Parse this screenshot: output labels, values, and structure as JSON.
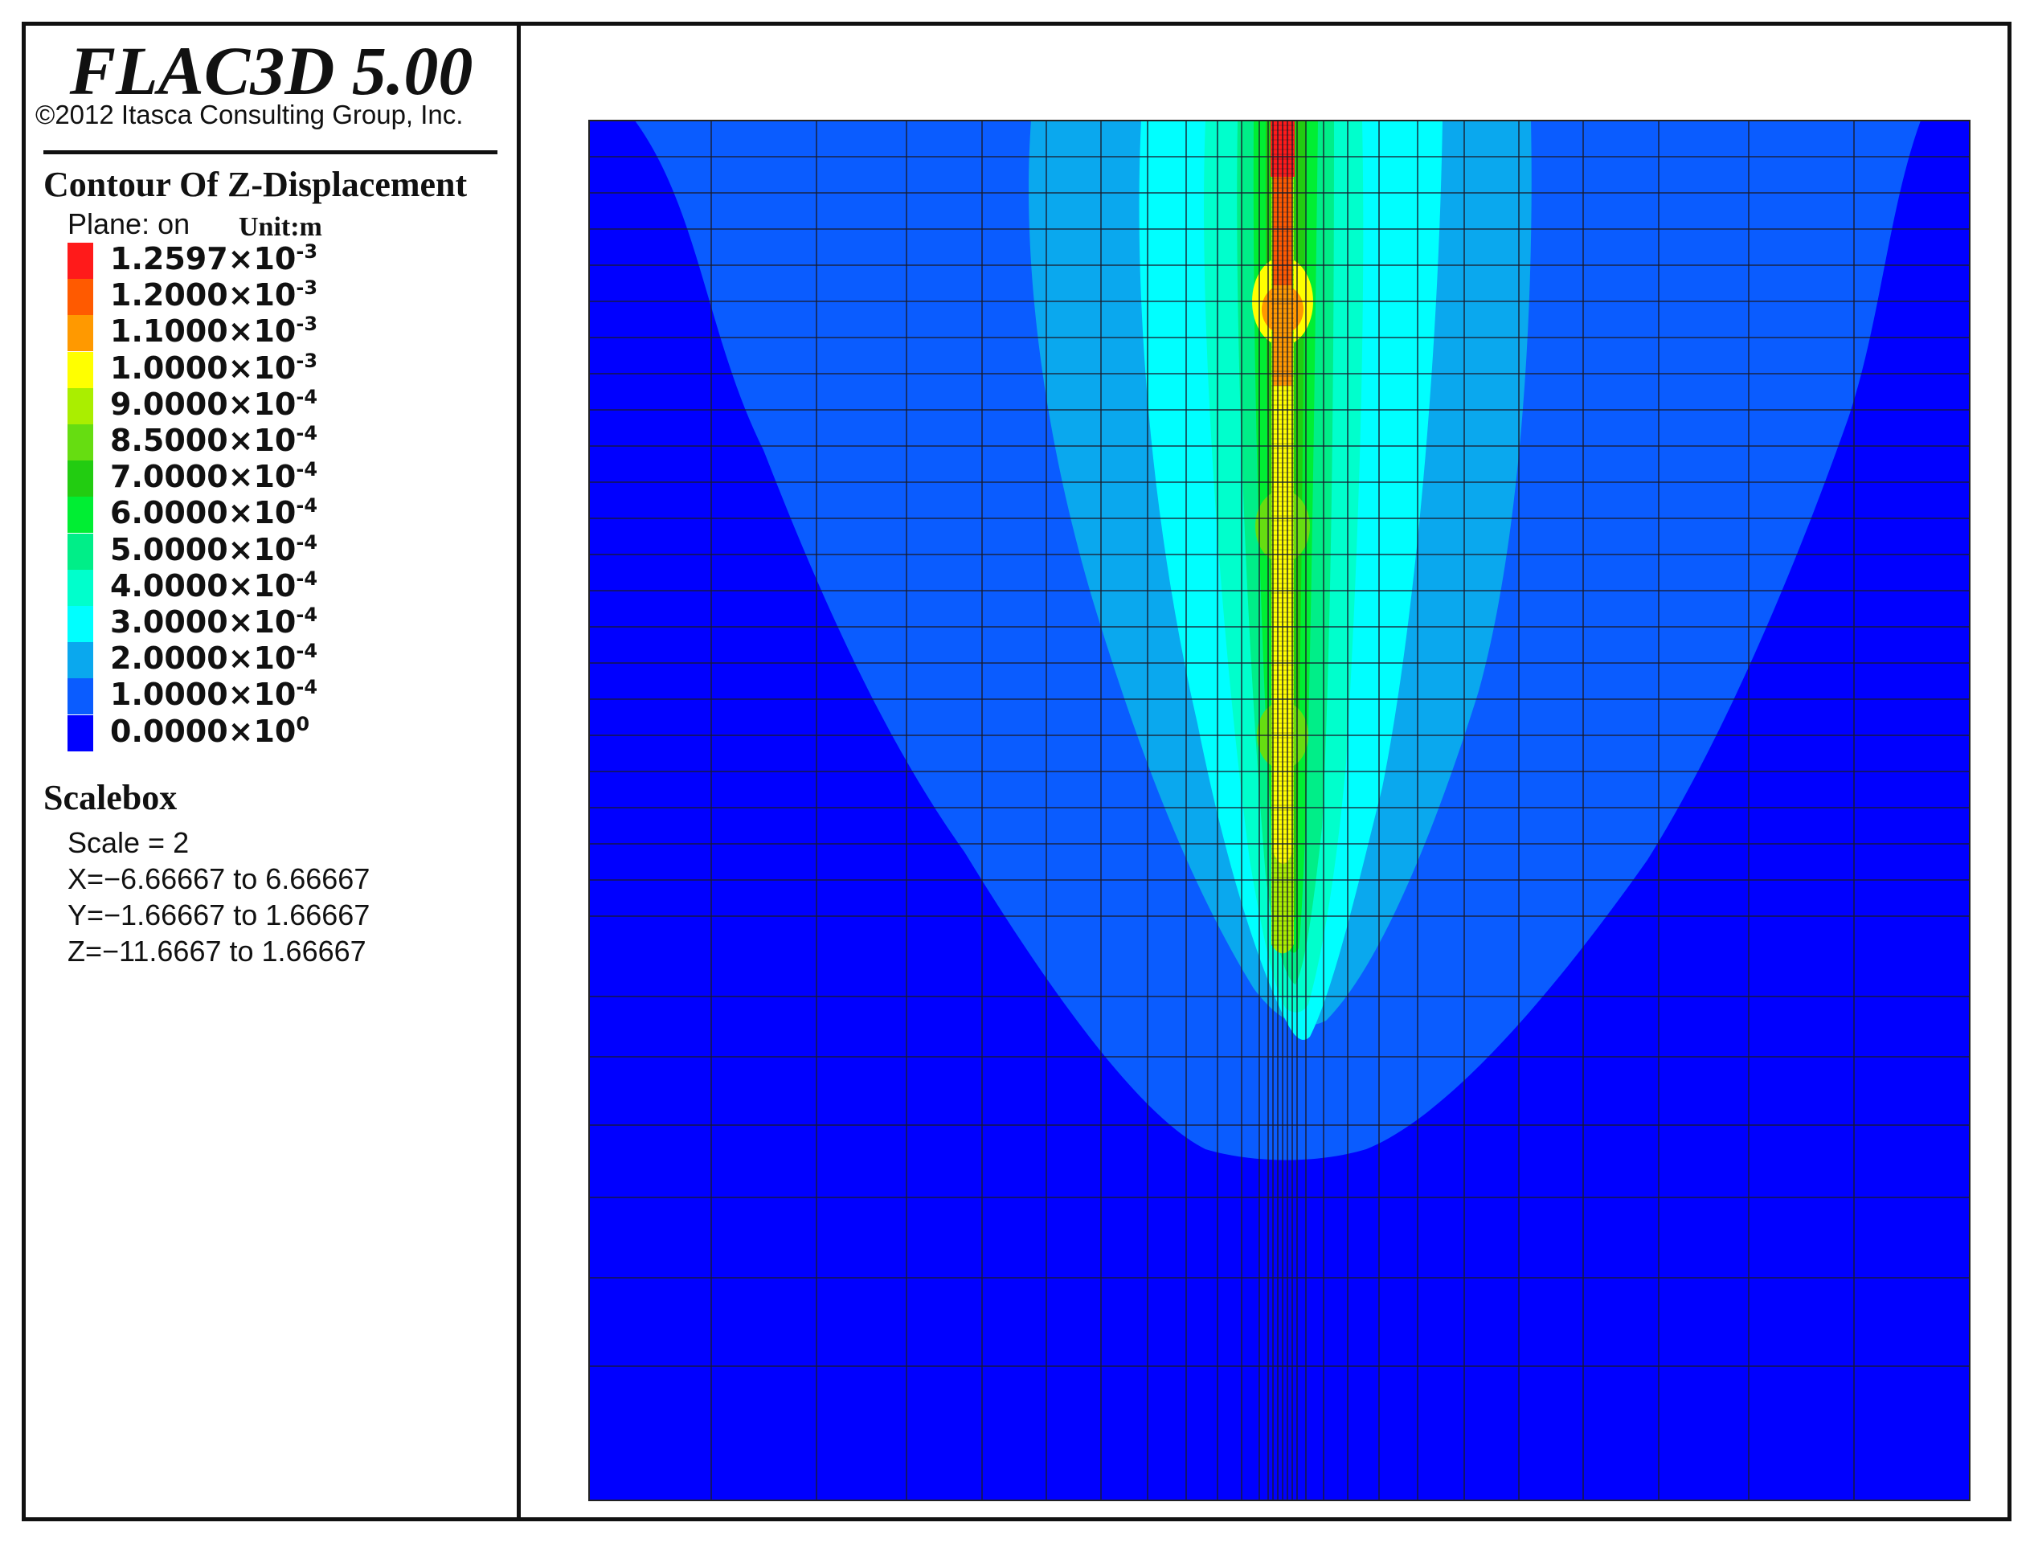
{
  "header": {
    "title": "FLAC3D 5.00",
    "copyright": "©2012 Itasca Consulting Group, Inc."
  },
  "legend": {
    "contour_title": "Contour Of Z-Displacement",
    "plane": "Plane: on",
    "unit": "Unit:m",
    "levels": [
      {
        "mantissa": "1.2597×10",
        "exp": "-3",
        "color": "#ff1a1a"
      },
      {
        "mantissa": "1.2000×10",
        "exp": "-3",
        "color": "#ff5a00"
      },
      {
        "mantissa": "1.1000×10",
        "exp": "-3",
        "color": "#ff9900"
      },
      {
        "mantissa": "1.0000×10",
        "exp": "-3",
        "color": "#ffff00"
      },
      {
        "mantissa": "9.0000×10",
        "exp": "-4",
        "color": "#aaee00"
      },
      {
        "mantissa": "8.5000×10",
        "exp": "-4",
        "color": "#66dd11"
      },
      {
        "mantissa": "7.0000×10",
        "exp": "-4",
        "color": "#22cc11"
      },
      {
        "mantissa": "6.0000×10",
        "exp": "-4",
        "color": "#00ee33"
      },
      {
        "mantissa": "5.0000×10",
        "exp": "-4",
        "color": "#00ee88"
      },
      {
        "mantissa": "4.0000×10",
        "exp": "-4",
        "color": "#00ffcc"
      },
      {
        "mantissa": "3.0000×10",
        "exp": "-4",
        "color": "#00ffff"
      },
      {
        "mantissa": "2.0000×10",
        "exp": "-4",
        "color": "#0aa8ee"
      },
      {
        "mantissa": "1.0000×10",
        "exp": "-4",
        "color": "#0a5cff"
      },
      {
        "mantissa": "0.0000×10",
        "exp": "0",
        "color": "#0000ff"
      }
    ]
  },
  "scalebox": {
    "title": "Scalebox",
    "scale": "Scale = 2",
    "x_range": "X=−6.66667 to 6.66667",
    "y_range": "Y=−1.66667 to 1.66667",
    "z_range": "Z=−11.6667 to 1.66667"
  },
  "chart_data": {
    "type": "heatmap",
    "quantity": "Z-Displacement",
    "unit": "m",
    "x_range": [
      -6.66667,
      6.66667
    ],
    "z_range": [
      -11.6667,
      1.66667
    ],
    "contour_levels": [
      0.0,
      0.0001,
      0.0002,
      0.0003,
      0.0004,
      0.0005,
      0.0006,
      0.0007,
      0.00085,
      0.0009,
      0.001,
      0.0011,
      0.0012,
      0.0012597
    ],
    "max_value": 0.0012597,
    "min_value": 0.0,
    "colors": [
      "#0000ff",
      "#0a5cff",
      "#0aa8ee",
      "#00ffff",
      "#00ffcc",
      "#00ee88",
      "#00ee33",
      "#22cc11",
      "#66dd11",
      "#aaee00",
      "#ffff00",
      "#ff9900",
      "#ff5a00",
      "#ff1a1a"
    ]
  }
}
